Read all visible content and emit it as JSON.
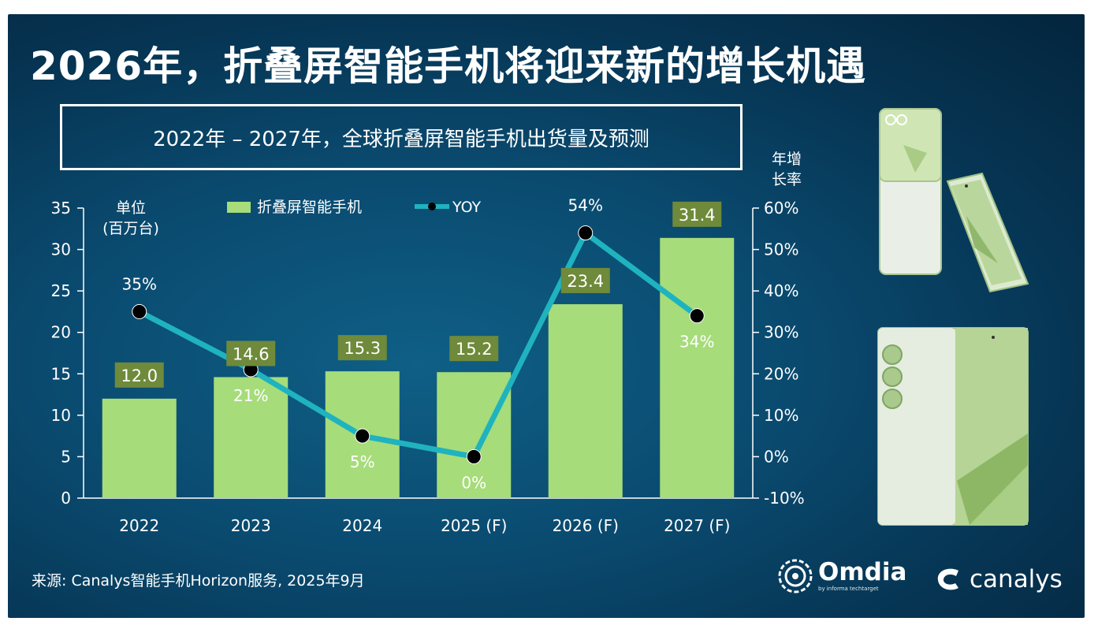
{
  "header": {
    "title": "2026年，折叠屏智能手机将迎来新的增长机遇",
    "subtitle": "2022年 – 2027年，全球折叠屏智能手机出货量及预测"
  },
  "chart_data": {
    "type": "bar",
    "categories": [
      "2022",
      "2023",
      "2024",
      "2025 (F)",
      "2026 (F)",
      "2027 (F)"
    ],
    "series": [
      {
        "name": "折叠屏智能手机",
        "type": "bar",
        "axis": "left",
        "values": [
          12.0,
          14.6,
          15.3,
          15.2,
          23.4,
          31.4
        ],
        "labels": [
          "12.0",
          "14.6",
          "15.3",
          "15.2",
          "23.4",
          "31.4"
        ]
      },
      {
        "name": "YOY",
        "type": "line",
        "axis": "right",
        "values": [
          35,
          21,
          5,
          0,
          54,
          34
        ],
        "labels": [
          "35%",
          "21%",
          "5%",
          "0%",
          "54%",
          "34%"
        ]
      }
    ],
    "left_axis": {
      "label_line1": "单位",
      "label_line2": "(百万台)",
      "min": 0,
      "max": 35,
      "ticks": [
        "0",
        "5",
        "10",
        "15",
        "20",
        "25",
        "30",
        "35"
      ]
    },
    "right_axis": {
      "label_line1": "年增",
      "label_line2": "长率",
      "min": -10,
      "max": 60,
      "ticks": [
        "-10%",
        "0%",
        "10%",
        "20%",
        "30%",
        "40%",
        "50%",
        "60%"
      ]
    },
    "legend": {
      "position": "top-center"
    },
    "grid": false,
    "colors": {
      "bar": "#a6dc7a",
      "bar_label_bg": "#6e8a3a",
      "line": "#1fb3bf",
      "marker": "#000000",
      "text": "#ffffff"
    }
  },
  "footer": {
    "source": "来源: Canalys智能手机Horizon服务, 2025年9月"
  },
  "logos": {
    "omdia_name": "Omdia",
    "omdia_tagline": "by informa techtarget",
    "canalys_name": "canalys"
  },
  "icons": [
    "omdia-logo-icon",
    "canalys-logo-icon",
    "flip-phone-image",
    "fold-phone-image"
  ]
}
